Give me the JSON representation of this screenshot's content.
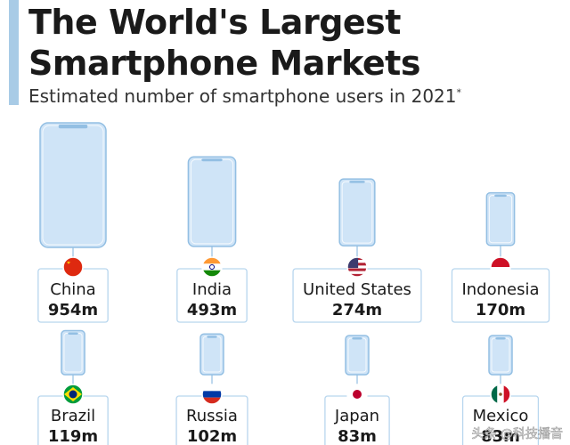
{
  "header": {
    "title_line1": "The World's Largest",
    "title_line2": "Smartphone Markets",
    "subtitle": "Estimated number of smartphone users in 2021",
    "footnote_mark": "*"
  },
  "colors": {
    "accent": "#a8cbe6",
    "phone_fill": "#cfe4f7",
    "phone_stroke": "#93bfe3",
    "box_border": "#b8d6ee"
  },
  "watermark": "头条 @科技播音",
  "chart_data": {
    "type": "pictogram",
    "unit": "m",
    "categories": [
      "China",
      "India",
      "United States",
      "Indonesia",
      "Brazil",
      "Russia",
      "Japan",
      "Mexico"
    ],
    "values": [
      954,
      493,
      274,
      170,
      119,
      102,
      83,
      83
    ],
    "value_labels": [
      "954m",
      "493m",
      "274m",
      "170m",
      "119m",
      "102m",
      "83m",
      "83m"
    ],
    "flags": [
      "china-flag-icon",
      "india-flag-icon",
      "us-flag-icon",
      "indonesia-flag-icon",
      "brazil-flag-icon",
      "russia-flag-icon",
      "japan-flag-icon",
      "mexico-flag-icon"
    ]
  }
}
